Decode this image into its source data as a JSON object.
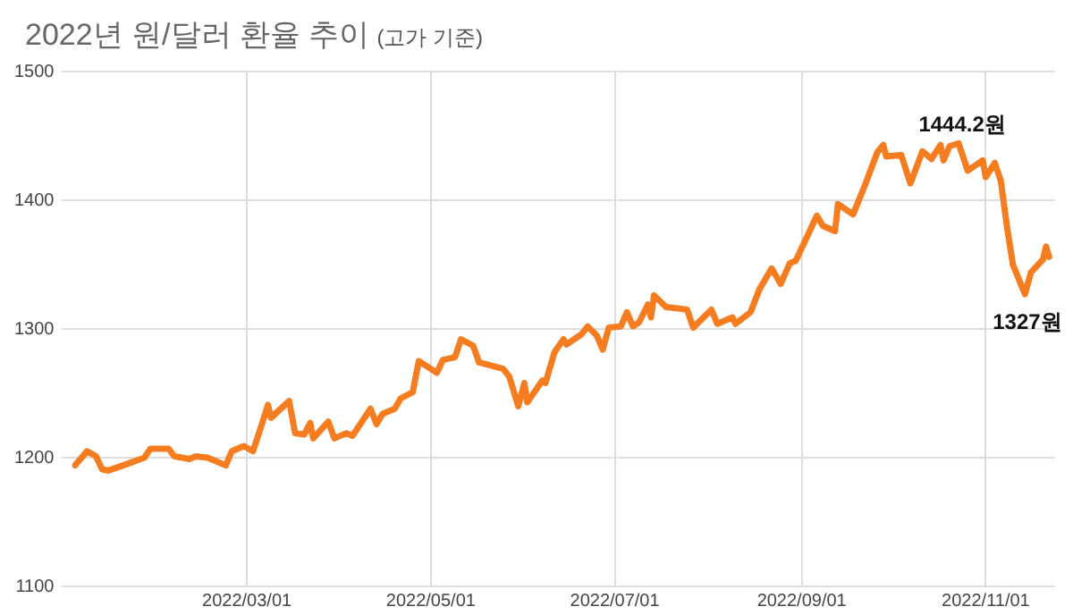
{
  "chart_data": {
    "type": "line",
    "title": "2022년 원/달러 환율 추이",
    "subtitle": "(고가 기준)",
    "x": [
      "2022-01-03",
      "2022-01-07",
      "2022-01-10",
      "2022-01-12",
      "2022-01-14",
      "2022-01-19",
      "2022-01-26",
      "2022-01-28",
      "2022-02-03",
      "2022-02-05",
      "2022-02-10",
      "2022-02-12",
      "2022-02-16",
      "2022-02-22",
      "2022-02-24",
      "2022-02-28",
      "2022-03-03",
      "2022-03-05",
      "2022-03-08",
      "2022-03-09",
      "2022-03-15",
      "2022-03-17",
      "2022-03-20",
      "2022-03-22",
      "2022-03-23",
      "2022-03-28",
      "2022-03-30",
      "2022-04-03",
      "2022-04-05",
      "2022-04-07",
      "2022-04-11",
      "2022-04-13",
      "2022-04-15",
      "2022-04-19",
      "2022-04-21",
      "2022-04-25",
      "2022-04-27",
      "2022-05-01",
      "2022-05-03",
      "2022-05-05",
      "2022-05-09",
      "2022-05-11",
      "2022-05-15",
      "2022-05-17",
      "2022-05-25",
      "2022-05-27",
      "2022-05-30",
      "2022-06-01",
      "2022-06-02",
      "2022-06-07",
      "2022-06-08",
      "2022-06-11",
      "2022-06-14",
      "2022-06-15",
      "2022-06-20",
      "2022-06-22",
      "2022-06-25",
      "2022-06-27",
      "2022-06-29",
      "2022-07-03",
      "2022-07-05",
      "2022-07-07",
      "2022-07-09",
      "2022-07-12",
      "2022-07-13",
      "2022-07-14",
      "2022-07-18",
      "2022-07-25",
      "2022-07-27",
      "2022-08-02",
      "2022-08-04",
      "2022-08-09",
      "2022-08-10",
      "2022-08-15",
      "2022-08-18",
      "2022-08-22",
      "2022-08-25",
      "2022-08-28",
      "2022-08-30",
      "2022-09-06",
      "2022-09-08",
      "2022-09-12",
      "2022-09-13",
      "2022-09-18",
      "2022-09-22",
      "2022-09-26",
      "2022-09-28",
      "2022-09-29",
      "2022-10-04",
      "2022-10-07",
      "2022-10-11",
      "2022-10-14",
      "2022-10-17",
      "2022-10-18",
      "2022-10-20",
      "2022-10-23",
      "2022-10-26",
      "2022-10-31",
      "2022-11-01",
      "2022-11-04",
      "2022-11-06",
      "2022-11-08",
      "2022-11-10",
      "2022-11-14",
      "2022-11-16",
      "2022-11-20",
      "2022-11-21",
      "2022-11-22"
    ],
    "series": [
      {
        "color": "#f57c1f",
        "values": [
          1194,
          1205,
          1201,
          1191,
          1190,
          1194,
          1200,
          1207,
          1207,
          1201,
          1199,
          1201,
          1200,
          1194,
          1205,
          1209,
          1205,
          1219,
          1241,
          1231,
          1244,
          1219,
          1218,
          1227,
          1215,
          1228,
          1215,
          1219,
          1217,
          1224,
          1238,
          1226,
          1234,
          1238,
          1246,
          1251,
          1275,
          1269,
          1266,
          1276,
          1278,
          1292,
          1287,
          1274,
          1269,
          1263,
          1240,
          1258,
          1243,
          1260,
          1258,
          1282,
          1292,
          1288,
          1296,
          1302,
          1295,
          1284,
          1301,
          1302,
          1313,
          1302,
          1305,
          1319,
          1309,
          1326,
          1317,
          1315,
          1301,
          1315,
          1304,
          1309,
          1304,
          1313,
          1331,
          1347,
          1335,
          1351,
          1353,
          1388,
          1380,
          1376,
          1397,
          1389,
          1412,
          1437,
          1443,
          1434,
          1435,
          1413,
          1438,
          1432,
          1443,
          1431,
          1442,
          1444.2,
          1423,
          1431,
          1418,
          1429,
          1415,
          1380,
          1350,
          1327,
          1344,
          1354,
          1364,
          1356
        ]
      }
    ],
    "xlim": [
      "2022-01-02",
      "2022-11-24"
    ],
    "xticks": [
      {
        "value": "2022-03-01",
        "label": "2022/03/01"
      },
      {
        "value": "2022-05-01",
        "label": "2022/05/01"
      },
      {
        "value": "2022-07-01",
        "label": "2022/07/01"
      },
      {
        "value": "2022-09-01",
        "label": "2022/09/01"
      },
      {
        "value": "2022-11-01",
        "label": "2022/11/01"
      }
    ],
    "ylim": [
      1100,
      1500
    ],
    "yticks": [
      1100,
      1200,
      1300,
      1400,
      1500
    ],
    "grid": true,
    "legend": false,
    "marker": "none",
    "line_style": "solid",
    "annotations": [
      {
        "text": "1444.2원",
        "x": "2022-10-23",
        "y": 1444.2
      },
      {
        "text": "1327원",
        "x": "2022-11-14",
        "y": 1327
      }
    ]
  }
}
